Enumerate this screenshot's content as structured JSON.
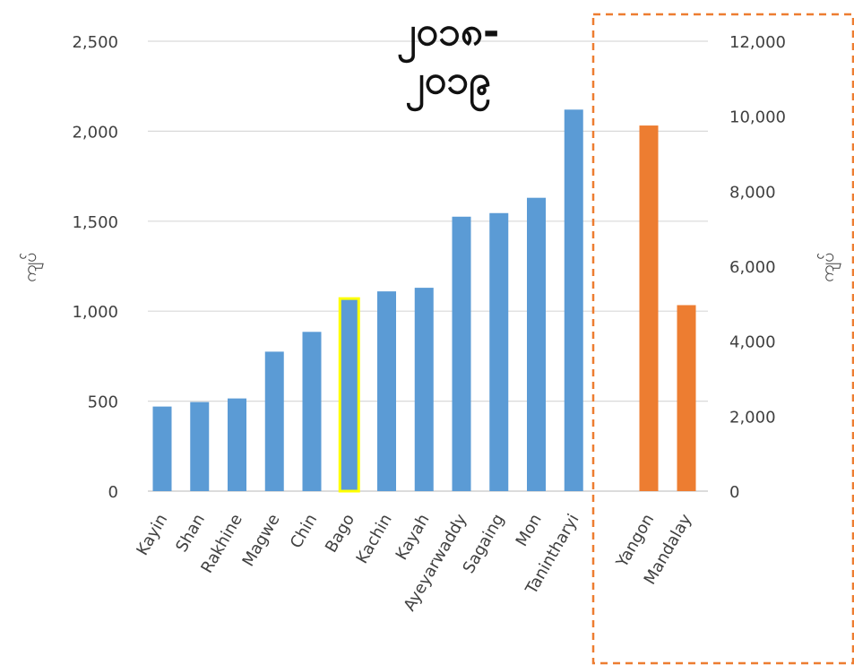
{
  "chart_data": {
    "type": "bar",
    "title_lines": [
      "၂၀၁၈-",
      "၂၀၁၉"
    ],
    "ylabel_left": "ကျပ်",
    "ylabel_right": "ကျပ်",
    "left_axis": {
      "ylim": [
        0,
        2500
      ],
      "ticks": [
        "0",
        "500",
        "1,000",
        "1,500",
        "2,000",
        "2,500"
      ],
      "tick_values": [
        0,
        500,
        1000,
        1500,
        2000,
        2500
      ]
    },
    "right_axis": {
      "ylim": [
        0,
        12500
      ],
      "ticks": [
        "0",
        "2,000",
        "4,000",
        "6,000",
        "8,000",
        "10,000",
        "12,000"
      ],
      "tick_values": [
        0,
        2000,
        4000,
        6000,
        8000,
        10000,
        12000
      ]
    },
    "grid": true,
    "series": [
      {
        "axis": "left",
        "color": "#5b9bd5",
        "categories": [
          "Kayin",
          "Shan",
          "Rakhine",
          "Magwe",
          "Chin",
          "Bago",
          "Kachin",
          "Kayah",
          "Ayeyarwaddy",
          "Sagaing",
          "Mon",
          "Tanintharyi"
        ],
        "values": [
          470,
          495,
          515,
          775,
          885,
          1070,
          1110,
          1130,
          1525,
          1545,
          1630,
          2120
        ],
        "highlight": {
          "category": "Bago",
          "outline_color": "#ffff00"
        }
      },
      {
        "axis": "right",
        "color": "#ed7d31",
        "categories": [
          "Yangon",
          "Mandalay"
        ],
        "values": [
          9750,
          4960
        ],
        "box_color": "#ed7d31"
      }
    ]
  }
}
